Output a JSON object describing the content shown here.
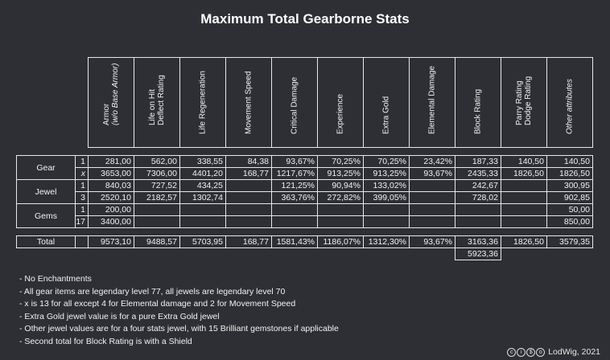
{
  "title": "Maximum Total Gearborne Stats",
  "headers": [
    {
      "lines": [
        "Armor",
        "(w/o Base Armor)"
      ],
      "italic_second": true
    },
    {
      "lines": [
        "Life on Hit",
        "Deflect Rating"
      ]
    },
    {
      "lines": [
        "Life Regeneration"
      ]
    },
    {
      "lines": [
        "Movement Speed"
      ]
    },
    {
      "lines": [
        "Critical Damage"
      ]
    },
    {
      "lines": [
        "Experience"
      ]
    },
    {
      "lines": [
        "Extra Gold"
      ]
    },
    {
      "lines": [
        "Elemental Damage"
      ]
    },
    {
      "lines": [
        "Block Rating"
      ]
    },
    {
      "lines": [
        "Parry Rating",
        "Dodge Rating"
      ]
    },
    {
      "lines": [
        "Other attributes"
      ],
      "italic": true
    }
  ],
  "groups": [
    {
      "name": "Gear",
      "rows": [
        {
          "sub": "1",
          "cells": [
            "281,00",
            "562,00",
            "338,55",
            "84,38",
            "93,67%",
            "70,25%",
            "70,25%",
            "23,42%",
            "187,33",
            "140,50",
            "140,50"
          ]
        },
        {
          "sub": "x",
          "cells": [
            "3653,00",
            "7306,00",
            "4401,20",
            "168,77",
            "1217,67%",
            "913,25%",
            "913,25%",
            "93,67%",
            "2435,33",
            "1826,50",
            "1826,50"
          ]
        }
      ]
    },
    {
      "name": "Jewel",
      "rows": [
        {
          "sub": "1",
          "cells": [
            "840,03",
            "727,52",
            "434,25",
            "",
            "121,25%",
            "90,94%",
            "133,02%",
            "",
            "242,67",
            "",
            "300,95"
          ]
        },
        {
          "sub": "3",
          "cells": [
            "2520,10",
            "2182,57",
            "1302,74",
            "",
            "363,76%",
            "272,82%",
            "399,05%",
            "",
            "728,02",
            "",
            "902,85"
          ]
        }
      ]
    },
    {
      "name": "Gems",
      "rows": [
        {
          "sub": "1",
          "cells": [
            "200,00",
            "",
            "",
            "",
            "",
            "",
            "",
            "",
            "",
            "",
            "50,00"
          ]
        },
        {
          "sub": "17",
          "cells": [
            "3400,00",
            "",
            "",
            "",
            "",
            "",
            "",
            "",
            "",
            "",
            "850,00"
          ]
        }
      ]
    }
  ],
  "total": {
    "label": "Total",
    "cells": [
      "9573,10",
      "9488,57",
      "5703,95",
      "168,77",
      "1581,43%",
      "1186,07%",
      "1312,30%",
      "93,67%",
      "3163,36",
      "1826,50",
      "3579,35"
    ],
    "block_shield": "5923,36"
  },
  "notes": [
    "- No Enchantments",
    "- All gear items are legendary level 77, all jewels are legendary level 70",
    "- x is 13 for all except 4 for Elemental damage and 2 for Movement Speed",
    "- Extra Gold jewel value is for a pure Extra Gold jewel",
    "- Other jewel values are for a four stats jewel, with 15 Brilliant gemstones if applicable",
    "- Second total for Block Rating is with a Shield"
  ],
  "credit": "LodWig, 2021",
  "license_icons": [
    "cc-icon",
    "by-icon",
    "nc-icon",
    "sa-icon"
  ]
}
